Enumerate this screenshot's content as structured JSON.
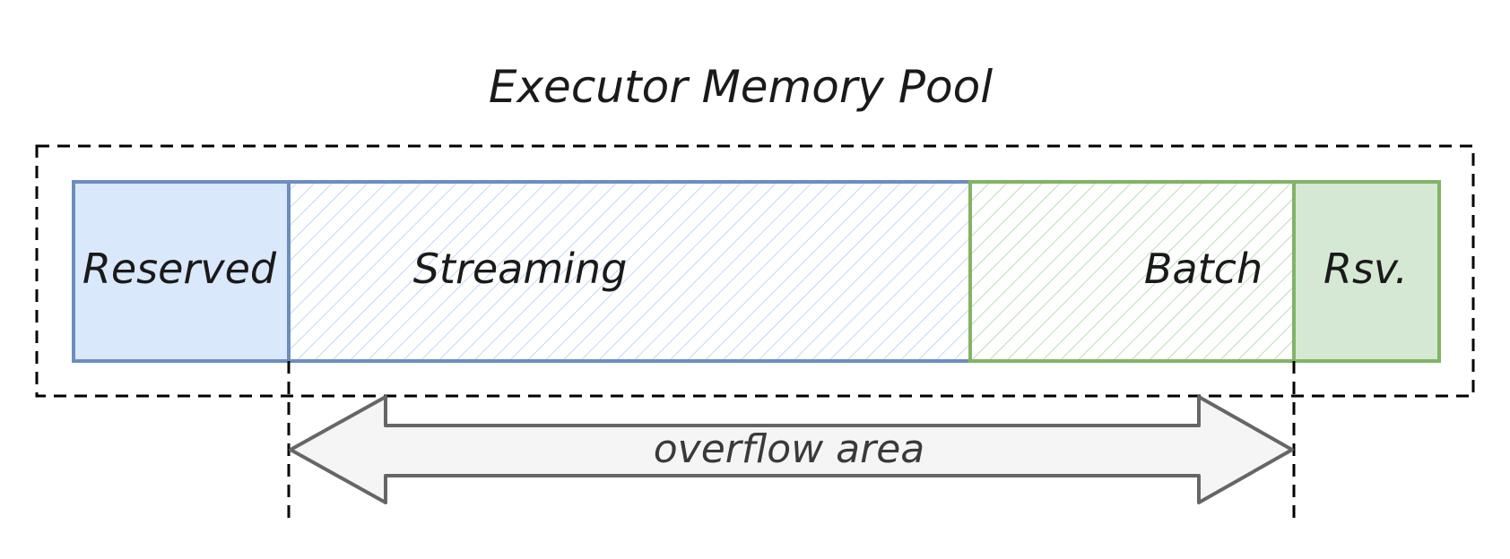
{
  "title": "Executor Memory Pool",
  "segments": {
    "reserved_left": {
      "label": "Reserved",
      "fill": "#dae8fc",
      "stroke": "#6c8ebf"
    },
    "streaming": {
      "label": "Streaming",
      "fill": "#dae8fc",
      "stroke": "#6c8ebf",
      "pattern": "hatched"
    },
    "batch": {
      "label": "Batch",
      "fill": "#d5e8d4",
      "stroke": "#82b366",
      "pattern": "hatched"
    },
    "reserved_right": {
      "label": "Rsv.",
      "fill": "#d5e8d4",
      "stroke": "#82b366"
    }
  },
  "pool_border": {
    "color": "#000000",
    "style": "dashed"
  },
  "overflow": {
    "label": "overflow area",
    "fill": "#f5f5f5",
    "stroke": "#666666"
  }
}
